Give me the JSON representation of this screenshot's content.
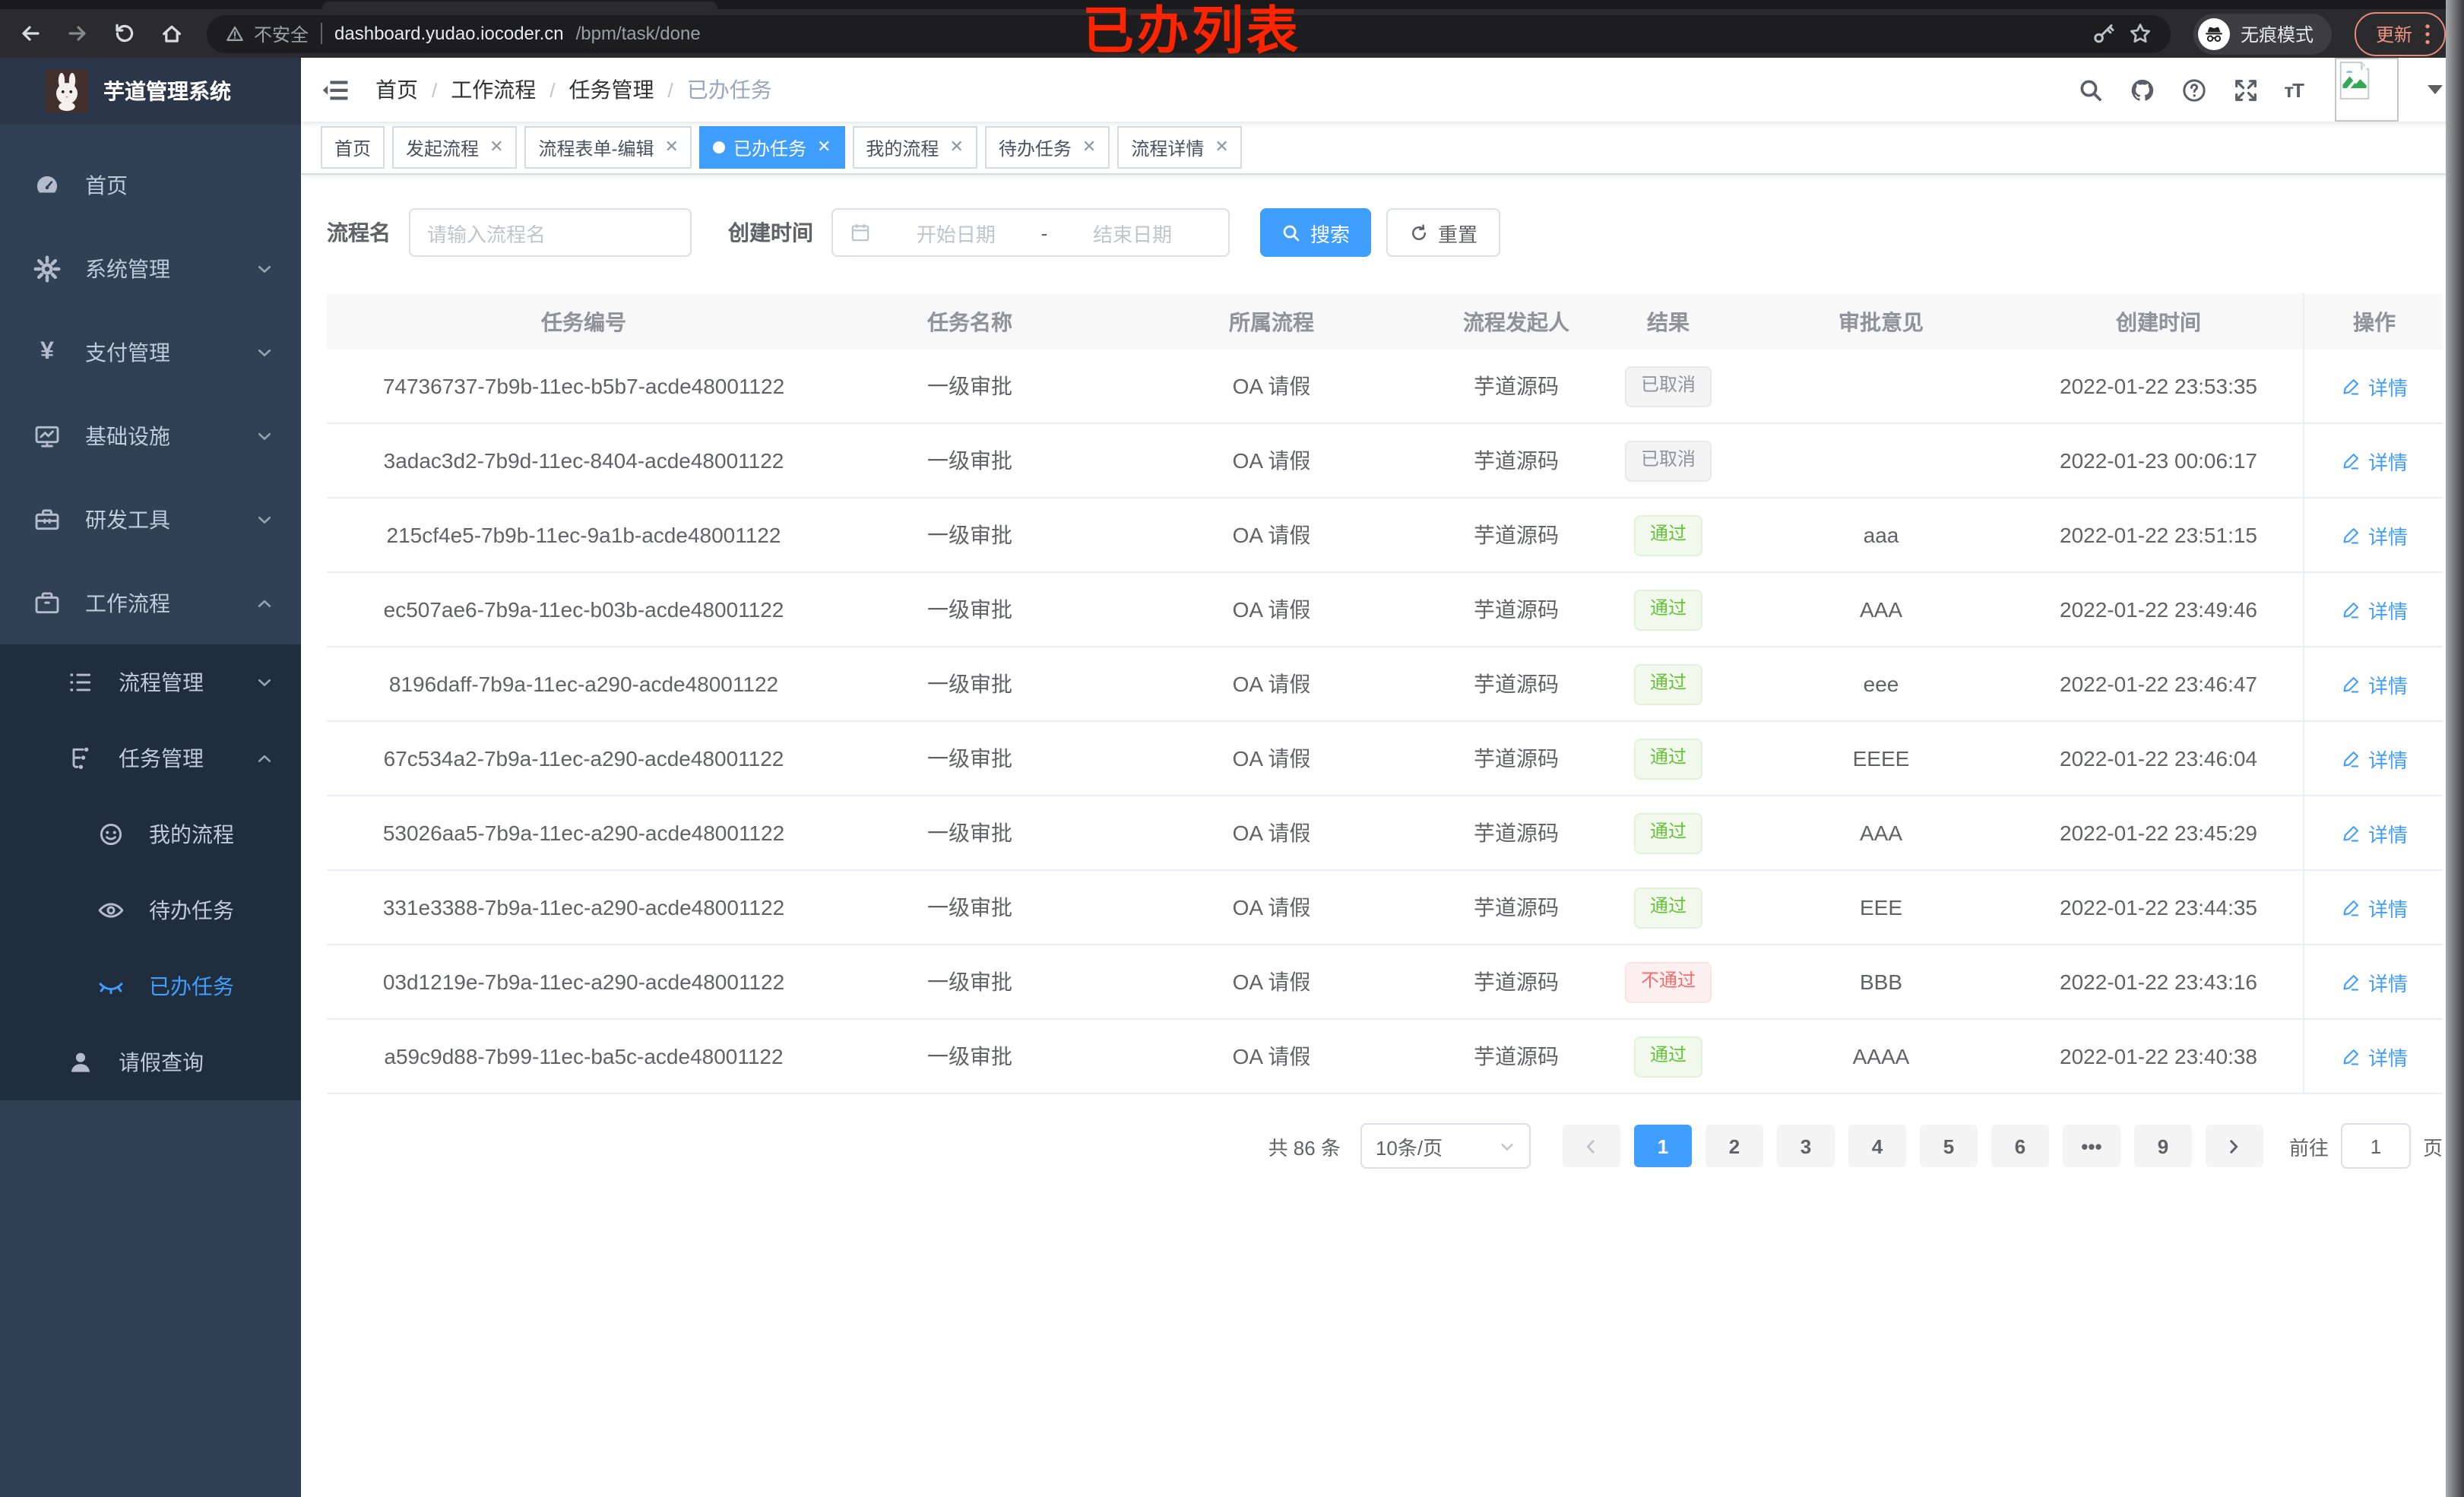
{
  "browser": {
    "security_label": "不安全",
    "url_host": "dashboard.yudao.iocoder.cn",
    "url_path": "/bpm/task/done",
    "incognito_label": "无痕模式",
    "update_label": "更新"
  },
  "annotation": {
    "text": "已办列表",
    "color": "#ff2400"
  },
  "sidebar": {
    "app_title": "芋道管理系统",
    "items": [
      {
        "label": "首页",
        "icon": "dashboard-icon",
        "level": 1
      },
      {
        "label": "系统管理",
        "icon": "gear-icon",
        "level": 1,
        "chevron": "down"
      },
      {
        "label": "支付管理",
        "icon": "yen-icon",
        "level": 1,
        "chevron": "down"
      },
      {
        "label": "基础设施",
        "icon": "monitor-icon",
        "level": 1,
        "chevron": "down"
      },
      {
        "label": "研发工具",
        "icon": "toolbox-icon",
        "level": 1,
        "chevron": "down"
      },
      {
        "label": "工作流程",
        "icon": "briefcase-icon",
        "level": 1,
        "chevron": "up"
      },
      {
        "label": "流程管理",
        "icon": "tree-icon",
        "level": 2,
        "chevron": "down"
      },
      {
        "label": "任务管理",
        "icon": "flow-icon",
        "level": 2,
        "chevron": "up"
      },
      {
        "label": "我的流程",
        "icon": "face-icon",
        "level": 3
      },
      {
        "label": "待办任务",
        "icon": "eye-icon",
        "level": 3
      },
      {
        "label": "已办任务",
        "icon": "eye-closed-icon",
        "level": 3,
        "active": true
      },
      {
        "label": "请假查询",
        "icon": "user-icon",
        "level": 2
      }
    ]
  },
  "header": {
    "breadcrumb": [
      "首页",
      "工作流程",
      "任务管理",
      "已办任务"
    ]
  },
  "tags": [
    {
      "label": "首页",
      "closable": false,
      "active": false
    },
    {
      "label": "发起流程",
      "closable": true,
      "active": false
    },
    {
      "label": "流程表单-编辑",
      "closable": true,
      "active": false
    },
    {
      "label": "已办任务",
      "closable": true,
      "active": true
    },
    {
      "label": "我的流程",
      "closable": true,
      "active": false
    },
    {
      "label": "待办任务",
      "closable": true,
      "active": false
    },
    {
      "label": "流程详情",
      "closable": true,
      "active": false
    }
  ],
  "filters": {
    "name_label": "流程名",
    "name_placeholder": "请输入流程名",
    "time_label": "创建时间",
    "start_placeholder": "开始日期",
    "range_separator": "-",
    "end_placeholder": "结束日期",
    "search_label": "搜索",
    "reset_label": "重置"
  },
  "table": {
    "columns": [
      "任务编号",
      "任务名称",
      "所属流程",
      "流程发起人",
      "结果",
      "审批意见",
      "创建时间",
      "操作"
    ],
    "action_label": "详情",
    "rows": [
      {
        "id": "74736737-7b9b-11ec-b5b7-acde48001122",
        "name": "一级审批",
        "process": "OA 请假",
        "starter": "芋道源码",
        "result": "已取消",
        "result_type": "info",
        "comment": "",
        "created": "2022-01-22 23:53:35"
      },
      {
        "id": "3adac3d2-7b9d-11ec-8404-acde48001122",
        "name": "一级审批",
        "process": "OA 请假",
        "starter": "芋道源码",
        "result": "已取消",
        "result_type": "info",
        "comment": "",
        "created": "2022-01-23 00:06:17"
      },
      {
        "id": "215cf4e5-7b9b-11ec-9a1b-acde48001122",
        "name": "一级审批",
        "process": "OA 请假",
        "starter": "芋道源码",
        "result": "通过",
        "result_type": "success",
        "comment": "aaa",
        "created": "2022-01-22 23:51:15"
      },
      {
        "id": "ec507ae6-7b9a-11ec-b03b-acde48001122",
        "name": "一级审批",
        "process": "OA 请假",
        "starter": "芋道源码",
        "result": "通过",
        "result_type": "success",
        "comment": "AAA",
        "created": "2022-01-22 23:49:46"
      },
      {
        "id": "8196daff-7b9a-11ec-a290-acde48001122",
        "name": "一级审批",
        "process": "OA 请假",
        "starter": "芋道源码",
        "result": "通过",
        "result_type": "success",
        "comment": "eee",
        "created": "2022-01-22 23:46:47"
      },
      {
        "id": "67c534a2-7b9a-11ec-a290-acde48001122",
        "name": "一级审批",
        "process": "OA 请假",
        "starter": "芋道源码",
        "result": "通过",
        "result_type": "success",
        "comment": "EEEE",
        "created": "2022-01-22 23:46:04"
      },
      {
        "id": "53026aa5-7b9a-11ec-a290-acde48001122",
        "name": "一级审批",
        "process": "OA 请假",
        "starter": "芋道源码",
        "result": "通过",
        "result_type": "success",
        "comment": "AAA",
        "created": "2022-01-22 23:45:29"
      },
      {
        "id": "331e3388-7b9a-11ec-a290-acde48001122",
        "name": "一级审批",
        "process": "OA 请假",
        "starter": "芋道源码",
        "result": "通过",
        "result_type": "success",
        "comment": "EEE",
        "created": "2022-01-22 23:44:35"
      },
      {
        "id": "03d1219e-7b9a-11ec-a290-acde48001122",
        "name": "一级审批",
        "process": "OA 请假",
        "starter": "芋道源码",
        "result": "不通过",
        "result_type": "danger",
        "comment": "BBB",
        "created": "2022-01-22 23:43:16"
      },
      {
        "id": "a59c9d88-7b99-11ec-ba5c-acde48001122",
        "name": "一级审批",
        "process": "OA 请假",
        "starter": "芋道源码",
        "result": "通过",
        "result_type": "success",
        "comment": "AAAA",
        "created": "2022-01-22 23:40:38"
      }
    ]
  },
  "pagination": {
    "total_text": "共 86 条",
    "page_size_text": "10条/页",
    "pages": [
      "1",
      "2",
      "3",
      "4",
      "5",
      "6",
      "...",
      "9"
    ],
    "active_page": "1",
    "goto_label": "前往",
    "goto_value": "1",
    "goto_unit": "页"
  },
  "colors": {
    "accent": "#409eff",
    "success": "#67c23a",
    "danger": "#f56c6c",
    "info": "#909399",
    "annotation": "#ff2400"
  }
}
